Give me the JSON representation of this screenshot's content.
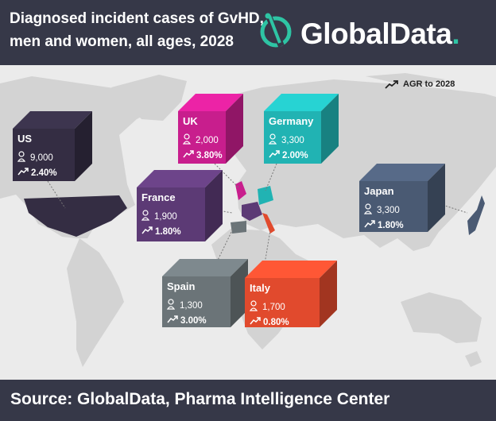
{
  "header": {
    "title_line1": "Diagnosed incident cases of GvHD,",
    "title_line2": "men and women, all ages, 2028",
    "logo_text": "GlobalData",
    "logo_dot": "."
  },
  "legend": {
    "label": "AGR to 2028",
    "icon": "trend-arrow-icon"
  },
  "footer": {
    "source": "Source: GlobalData, Pharma Intelligence Center"
  },
  "colors": {
    "header_bg": "#363848",
    "map_bg": "#ebebeb",
    "land": "#d3d3d3",
    "us": "#342d43",
    "uk": "#c81e8d",
    "germany": "#21b3b3",
    "france": "#5c3a75",
    "japan": "#4a5a73",
    "spain": "#6b7478",
    "italy": "#e14a2d",
    "logo_accent": "#2ec4a4"
  },
  "chart_data": {
    "type": "table",
    "title": "Diagnosed incident cases of GvHD, men and women, all ages, 2028",
    "columns": [
      "Country",
      "Cases",
      "AGR to 2028"
    ],
    "rows": [
      {
        "country": "US",
        "cases": "9,000",
        "agr": "2.40%",
        "color": "#342d43"
      },
      {
        "country": "UK",
        "cases": "2,000",
        "agr": "3.80%",
        "color": "#c81e8d"
      },
      {
        "country": "Germany",
        "cases": "3,300",
        "agr": "2.00%",
        "color": "#21b3b3"
      },
      {
        "country": "France",
        "cases": "1,900",
        "agr": "1.80%",
        "color": "#5c3a75"
      },
      {
        "country": "Japan",
        "cases": "3,300",
        "agr": "1.80%",
        "color": "#4a5a73"
      },
      {
        "country": "Spain",
        "cases": "1,300",
        "agr": "3.00%",
        "color": "#6b7478"
      },
      {
        "country": "Italy",
        "cases": "1,700",
        "agr": "0.80%",
        "color": "#e14a2d"
      }
    ]
  }
}
